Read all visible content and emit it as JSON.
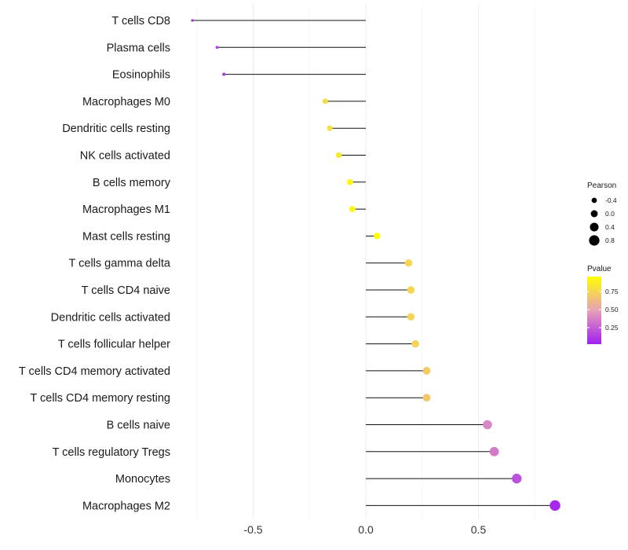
{
  "chart_data": {
    "type": "lollipop",
    "categories": [
      "T cells CD8",
      "Plasma cells",
      "Eosinophils",
      "Macrophages M0",
      "Dendritic cells resting",
      "NK cells activated",
      "B cells memory",
      "Macrophages M1",
      "Mast cells resting",
      "T cells gamma delta",
      "T cells CD4 naive",
      "Dendritic cells activated",
      "T cells follicular helper",
      "T cells CD4 memory activated",
      "T cells CD4 memory resting",
      "B cells naive",
      "T cells regulatory  Tregs",
      "Monocytes",
      "Macrophages M2"
    ],
    "pearson": [
      -0.77,
      -0.66,
      -0.63,
      -0.18,
      -0.16,
      -0.12,
      -0.07,
      -0.06,
      0.05,
      0.19,
      0.2,
      0.2,
      0.22,
      0.27,
      0.27,
      0.54,
      0.57,
      0.67,
      0.84
    ],
    "pvalue": [
      0.05,
      0.15,
      0.12,
      0.78,
      0.8,
      0.85,
      0.92,
      0.92,
      0.97,
      0.75,
      0.76,
      0.75,
      0.74,
      0.7,
      0.69,
      0.4,
      0.35,
      0.2,
      0.05
    ],
    "xlim": [
      -0.8,
      0.85
    ],
    "xticks": [
      -0.5,
      0.0,
      0.5
    ],
    "xtick_labels": [
      "-0.5",
      "0.0",
      "0.5"
    ],
    "xlabel": "",
    "ylabel": "",
    "grid": true,
    "size_legend": {
      "title": "Pearson",
      "values": [
        -0.4,
        0.0,
        0.4,
        0.8
      ],
      "labels": [
        "-0.4",
        "0.0",
        "0.4",
        "0.8"
      ]
    },
    "color_legend": {
      "title": "Pvalue",
      "ticks": [
        0.25,
        0.5,
        0.75
      ],
      "labels": [
        "0.25",
        "0.50",
        "0.75"
      ],
      "range": [
        0.02,
        0.96
      ],
      "low_color": "#a020f0",
      "mid_color": "#e8a0b8",
      "high_color": "#ffff00"
    }
  }
}
